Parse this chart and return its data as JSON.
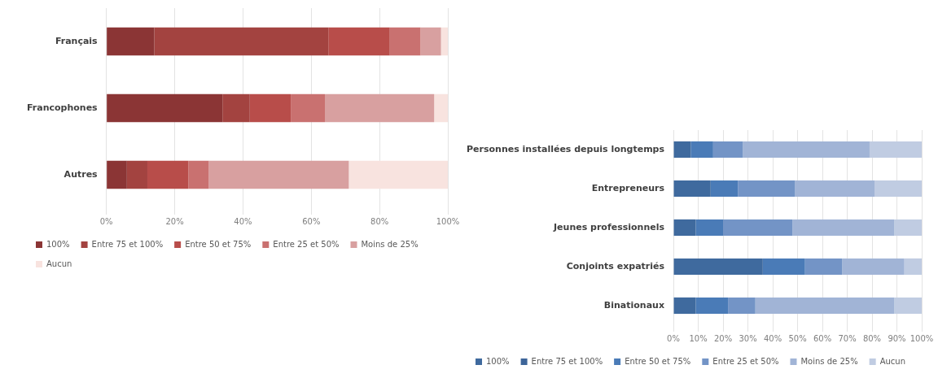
{
  "chart_data": [
    {
      "type": "bar",
      "orientation": "horizontal",
      "stacked": true,
      "categories": [
        "Français",
        "Francophones",
        "Autres"
      ],
      "series": [
        {
          "name": "100%",
          "color": "#8b3535",
          "values": [
            14,
            34,
            6
          ]
        },
        {
          "name": "Entre 75 et 100%",
          "color": "#a34340",
          "values": [
            51,
            8,
            6
          ]
        },
        {
          "name": "Entre 50 et 75%",
          "color": "#b84d4a",
          "values": [
            18,
            12,
            12
          ]
        },
        {
          "name": "Entre 25 et 50%",
          "color": "#c97170",
          "values": [
            9,
            10,
            6
          ]
        },
        {
          "name": "Moins de 25%",
          "color": "#d8a0a0",
          "values": [
            6,
            32,
            41
          ]
        },
        {
          "name": "Aucun",
          "color": "#f8e3df",
          "values": [
            2,
            4,
            29
          ]
        }
      ],
      "xlim": [
        0,
        100
      ],
      "xticks": [
        {
          "value": 0,
          "label": "0%"
        },
        {
          "value": 20,
          "label": "20%"
        },
        {
          "value": 40,
          "label": "40%"
        },
        {
          "value": 60,
          "label": "60%"
        },
        {
          "value": 80,
          "label": "80%"
        },
        {
          "value": 100,
          "label": "100%"
        }
      ],
      "grid": "x",
      "legend": "bottom"
    },
    {
      "type": "bar",
      "orientation": "horizontal",
      "stacked": true,
      "categories": [
        "Personnes installées depuis longtemps",
        "Entrepreneurs",
        "Jeunes professionnels",
        "Conjoints expatriés",
        "Binationaux"
      ],
      "series": [
        {
          "name": "100%",
          "color": "#3f6a9e",
          "values": [
            7,
            15,
            9,
            36,
            9
          ]
        },
        {
          "name": "Entre 75 et 100%",
          "color": "#3d6599",
          "values": [
            0,
            0,
            0,
            0,
            0
          ]
        },
        {
          "name": "Entre 50 et 75%",
          "color": "#4a7bb7",
          "values": [
            9,
            11,
            11,
            17,
            13
          ]
        },
        {
          "name": "Entre 25 et 50%",
          "color": "#7394c6",
          "values": [
            12,
            23,
            28,
            15,
            11
          ]
        },
        {
          "name": "Moins de 25%",
          "color": "#a1b4d6",
          "values": [
            51,
            32,
            41,
            25,
            56
          ]
        },
        {
          "name": "Aucun",
          "color": "#c0cce2",
          "values": [
            21,
            19,
            11,
            7,
            11
          ]
        }
      ],
      "xlim": [
        0,
        100
      ],
      "xticks": [
        {
          "value": 0,
          "label": "0%"
        },
        {
          "value": 10,
          "label": "10%"
        },
        {
          "value": 20,
          "label": "20%"
        },
        {
          "value": 30,
          "label": "30%"
        },
        {
          "value": 40,
          "label": "40%"
        },
        {
          "value": 50,
          "label": "50%"
        },
        {
          "value": 60,
          "label": "60%"
        },
        {
          "value": 70,
          "label": "70%"
        },
        {
          "value": 80,
          "label": "80%"
        },
        {
          "value": 90,
          "label": "90%"
        },
        {
          "value": 100,
          "label": "100%"
        }
      ],
      "grid": "x",
      "legend": "bottom"
    }
  ]
}
